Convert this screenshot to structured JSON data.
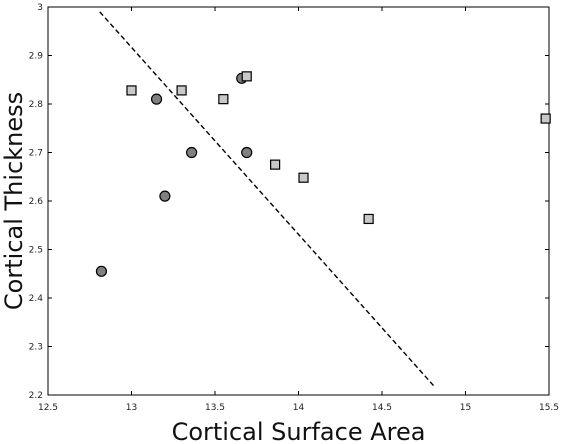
{
  "chart_data": {
    "type": "scatter",
    "title": "",
    "xlabel": "Cortical Surface Area",
    "ylabel": "Cortical Thickness",
    "xlim": [
      12.5,
      15.5
    ],
    "ylim": [
      2.2,
      3.0
    ],
    "xticks": [
      "12.5",
      "13",
      "13.5",
      "14",
      "14.5",
      "15",
      "15.5"
    ],
    "yticks": [
      "2.2",
      "2.3",
      "2.4",
      "2.5",
      "2.6",
      "2.7",
      "2.8",
      "2.9",
      "3"
    ],
    "grid": false,
    "series": [
      {
        "marker": "circle",
        "color": "#808080",
        "points": [
          [
            12.82,
            2.455
          ],
          [
            13.15,
            2.81
          ],
          [
            13.2,
            2.61
          ],
          [
            13.36,
            2.7
          ],
          [
            13.66,
            2.853
          ],
          [
            13.69,
            2.7
          ]
        ]
      },
      {
        "marker": "square",
        "color": "#c8c8c8",
        "points": [
          [
            13.0,
            2.828
          ],
          [
            13.3,
            2.828
          ],
          [
            13.55,
            2.81
          ],
          [
            13.69,
            2.857
          ],
          [
            13.86,
            2.675
          ],
          [
            14.03,
            2.648
          ],
          [
            14.42,
            2.563
          ],
          [
            15.48,
            2.77
          ]
        ]
      }
    ],
    "reference_line": {
      "style": "dashed",
      "color": "#000000",
      "points": [
        [
          12.81,
          2.99
        ],
        [
          14.82,
          2.215
        ]
      ]
    }
  }
}
